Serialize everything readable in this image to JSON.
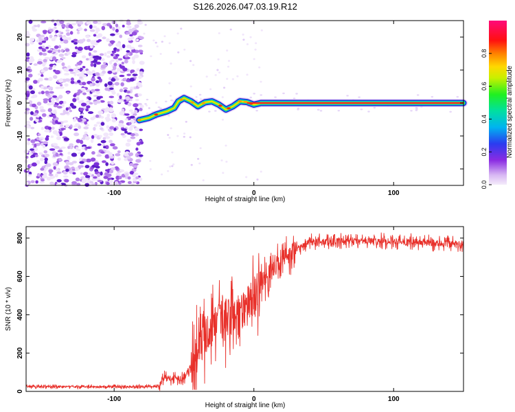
{
  "title": "S126.2026.047.03.19.R12",
  "chart_data": [
    {
      "type": "heatmap",
      "xlabel": "Height of straight line (km)",
      "ylabel": "Frequency (Hz)",
      "xlim": [
        -163,
        150
      ],
      "ylim": [
        -25,
        25
      ],
      "xticks": [
        -100,
        0,
        100
      ],
      "yticks": [
        -20,
        -10,
        0,
        10,
        20
      ],
      "colorbar": {
        "label": "Normalized spectral amplitude",
        "range": [
          0,
          1
        ],
        "ticks": [
          0.0,
          0.2,
          0.4,
          0.6,
          0.8
        ]
      },
      "ridge": {
        "description_points": [
          {
            "x": -82,
            "y": -5.2
          },
          {
            "x": -75,
            "y": -4.5
          },
          {
            "x": -70,
            "y": -3.5
          },
          {
            "x": -62,
            "y": -2.5
          },
          {
            "x": -57,
            "y": -1.5
          },
          {
            "x": -54,
            "y": 0.5
          },
          {
            "x": -50,
            "y": 1.5
          },
          {
            "x": -45,
            "y": 0.5
          },
          {
            "x": -40,
            "y": -1.0
          },
          {
            "x": -35,
            "y": 0.2
          },
          {
            "x": -30,
            "y": 0.5
          },
          {
            "x": -25,
            "y": -0.5
          },
          {
            "x": -20,
            "y": -2.0
          },
          {
            "x": -15,
            "y": -1.0
          },
          {
            "x": -10,
            "y": 0.5
          },
          {
            "x": -5,
            "y": 0.3
          },
          {
            "x": 0,
            "y": -0.5
          },
          {
            "x": 5,
            "y": 0.0
          },
          {
            "x": 150,
            "y": 0.0
          }
        ]
      }
    },
    {
      "type": "line",
      "xlabel": "Height of straight line (km)",
      "ylabel": "SNR (10 * v/v)",
      "xlim": [
        -163,
        150
      ],
      "ylim": [
        0,
        860
      ],
      "xticks": [
        -100,
        0,
        100
      ],
      "yticks": [
        0,
        200,
        400,
        600,
        800
      ],
      "series": [
        {
          "name": "SNR",
          "color": "#e8302a",
          "trend": [
            {
              "x": -163,
              "y": 25
            },
            {
              "x": -68,
              "y": 25
            },
            {
              "x": -65,
              "y": 70
            },
            {
              "x": -50,
              "y": 70
            },
            {
              "x": -45,
              "y": 130
            },
            {
              "x": -35,
              "y": 300
            },
            {
              "x": -20,
              "y": 380
            },
            {
              "x": -5,
              "y": 440
            },
            {
              "x": 5,
              "y": 560
            },
            {
              "x": 15,
              "y": 650
            },
            {
              "x": 25,
              "y": 720
            },
            {
              "x": 40,
              "y": 780
            },
            {
              "x": 100,
              "y": 785
            },
            {
              "x": 150,
              "y": 765
            }
          ]
        }
      ]
    }
  ]
}
